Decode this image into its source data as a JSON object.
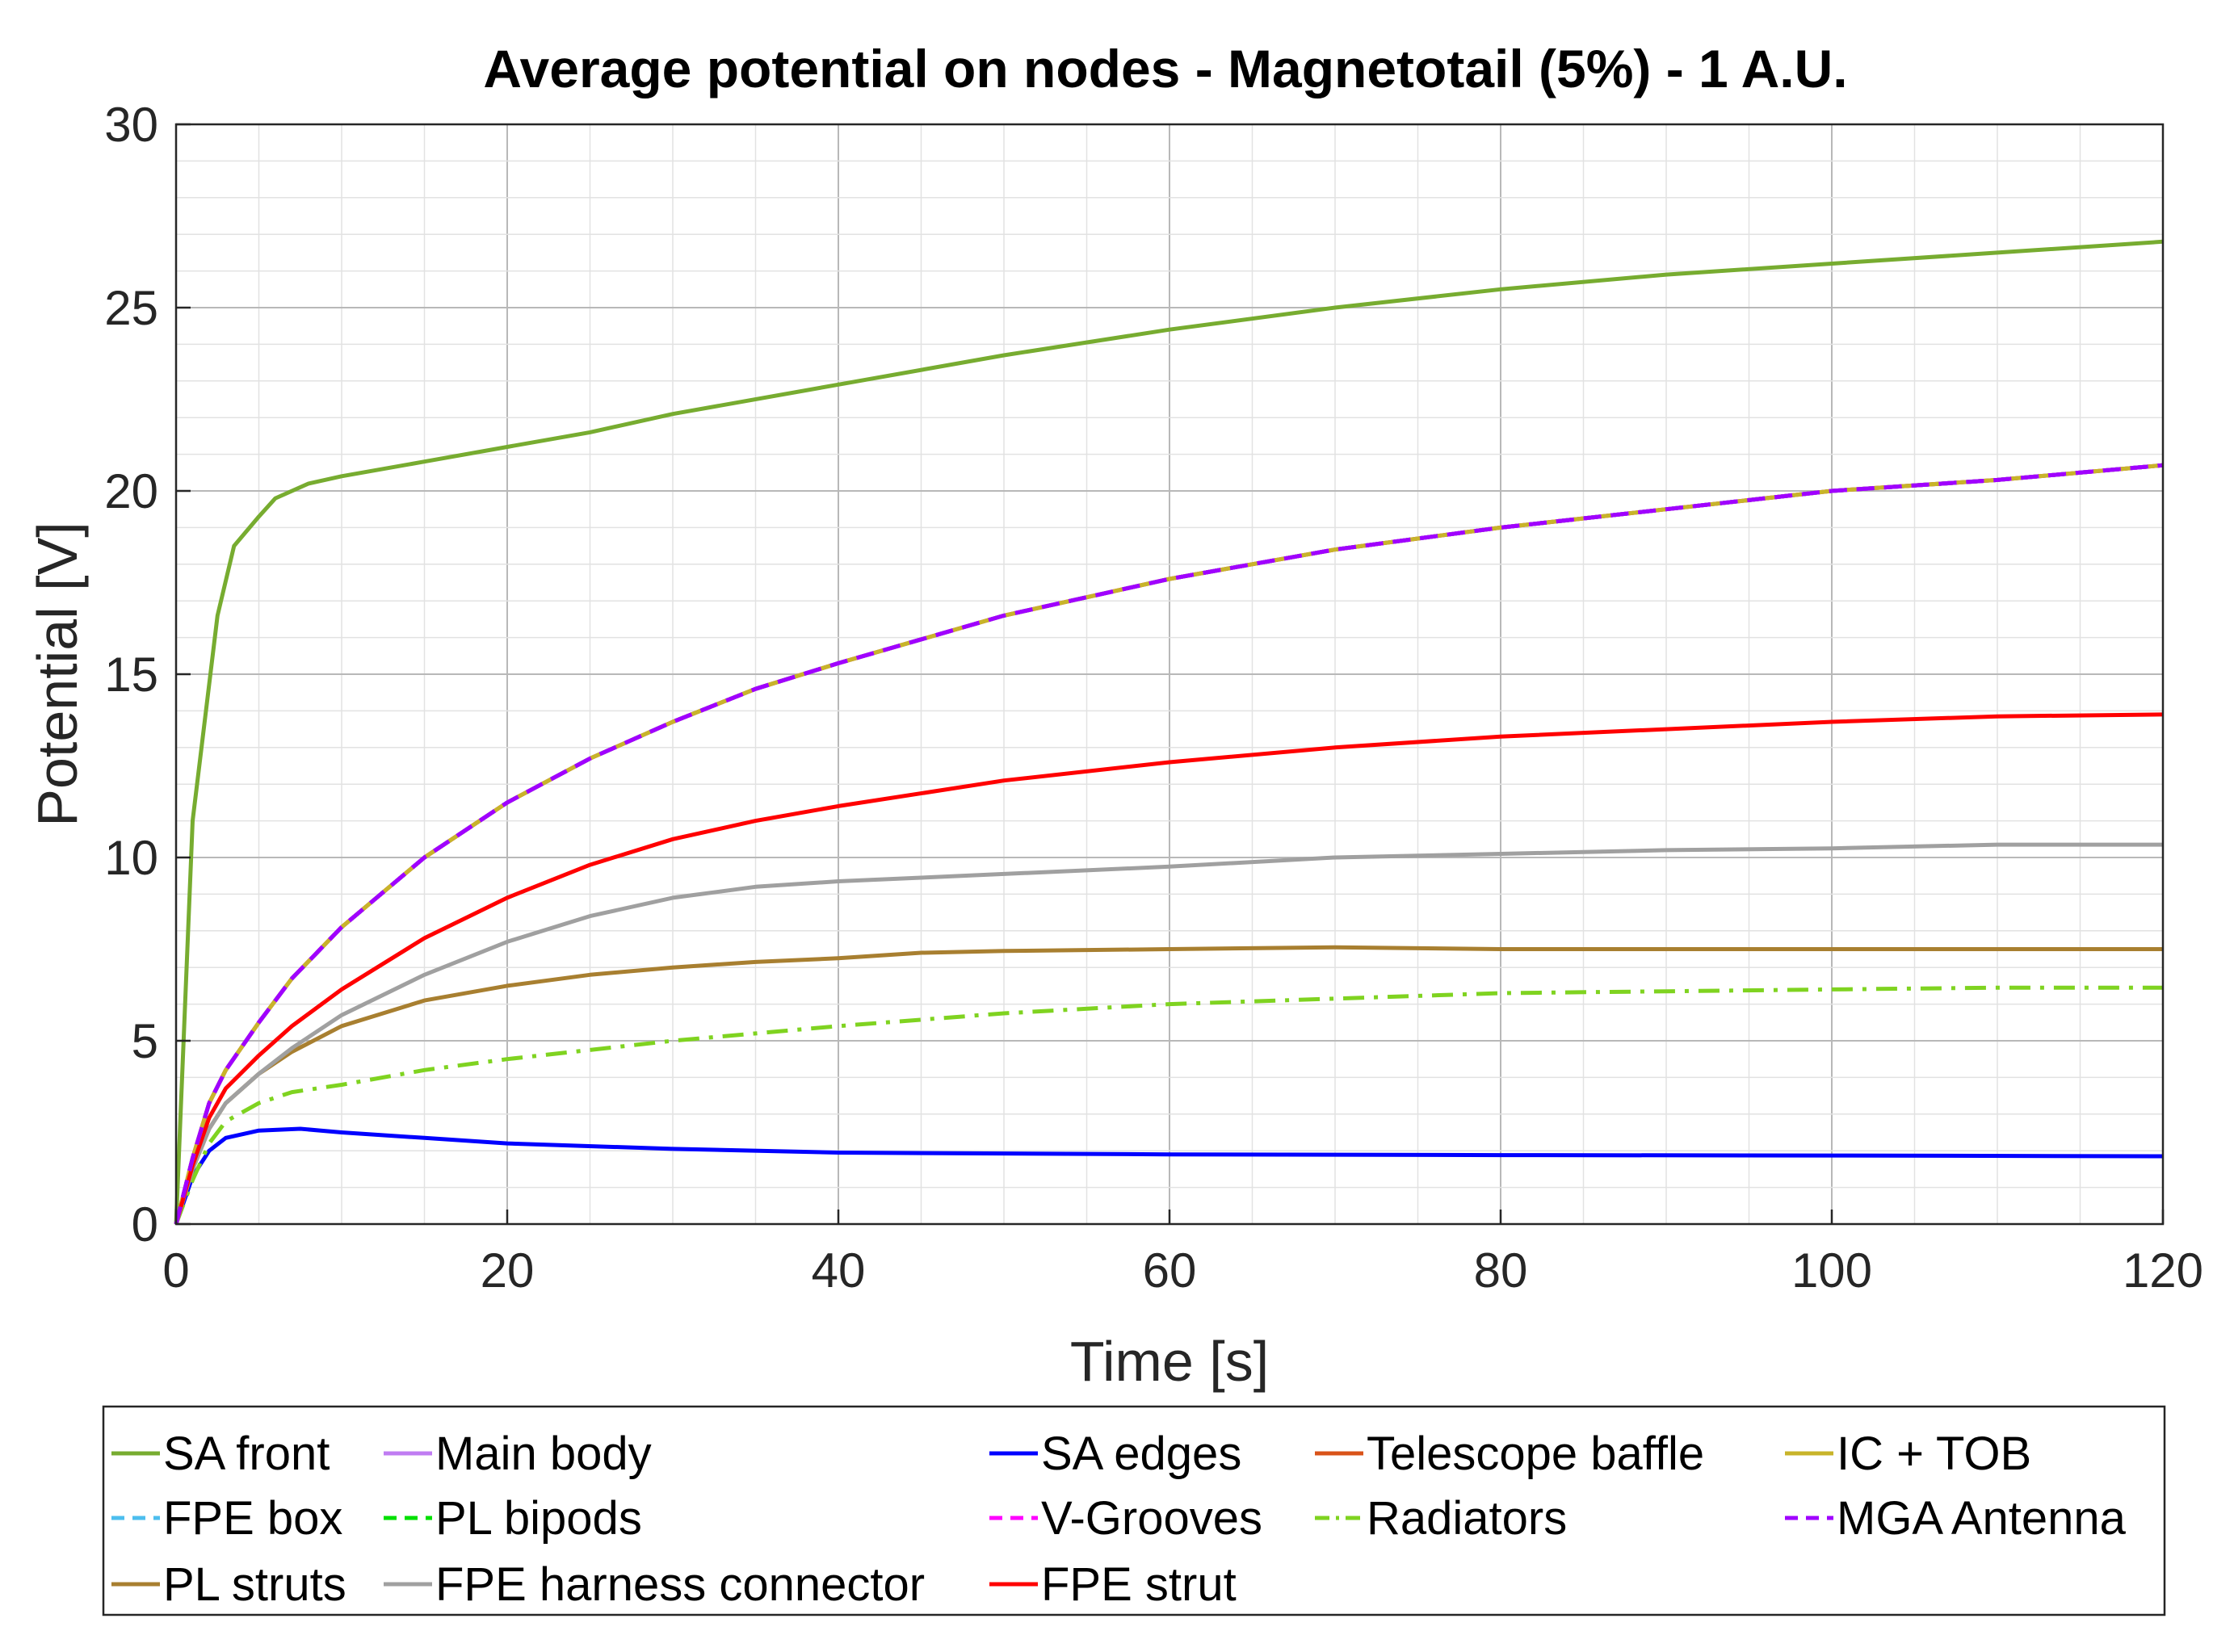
{
  "chart_data": {
    "type": "line",
    "title": "Average potential on nodes - Magnetotail (5%) - 1 A.U.",
    "xlabel": "Time [s]",
    "ylabel": "Potential [V]",
    "xlim": [
      0,
      120
    ],
    "ylim": [
      0,
      30
    ],
    "xticks": [
      0,
      20,
      40,
      60,
      80,
      100,
      120
    ],
    "yticks": [
      0,
      5,
      10,
      15,
      20,
      25,
      30
    ],
    "grid": true,
    "minor_grid": true,
    "legend_position": "bottom",
    "series": [
      {
        "name": "SA front",
        "color": "#77AC30",
        "dash": "solid",
        "x": [
          0,
          1,
          2.5,
          3.5,
          5,
          6,
          8,
          10,
          15,
          20,
          25,
          30,
          40,
          50,
          60,
          70,
          80,
          90,
          100,
          110,
          120
        ],
        "y": [
          0,
          11,
          16.6,
          18.5,
          19.3,
          19.8,
          20.2,
          20.4,
          20.8,
          21.2,
          21.6,
          22.1,
          22.9,
          23.7,
          24.4,
          25.0,
          25.5,
          25.9,
          26.2,
          26.5,
          26.8
        ]
      },
      {
        "name": "Main body",
        "color": "#C07CF2",
        "dash": "solid",
        "x": [
          0,
          1,
          2,
          3,
          5,
          7,
          10,
          15,
          20,
          25,
          30,
          35,
          40,
          50,
          60,
          70,
          80,
          90,
          100,
          110,
          120
        ],
        "y": [
          0,
          1.8,
          3.3,
          4.2,
          5.5,
          6.7,
          8.1,
          10.0,
          11.5,
          12.7,
          13.7,
          14.6,
          15.3,
          16.6,
          17.6,
          18.4,
          19.0,
          19.5,
          20.0,
          20.3,
          20.7
        ]
      },
      {
        "name": "SA edges",
        "color": "#0000FF",
        "dash": "solid",
        "x": [
          0,
          1,
          2,
          3,
          5,
          7.5,
          10,
          15,
          20,
          30,
          40,
          60,
          80,
          100,
          120
        ],
        "y": [
          0,
          1.3,
          2.0,
          2.35,
          2.55,
          2.6,
          2.5,
          2.35,
          2.2,
          2.05,
          1.95,
          1.9,
          1.88,
          1.87,
          1.85
        ]
      },
      {
        "name": "Telescope baffle",
        "color": "#D95319",
        "dash": "solid",
        "x": [
          0,
          1,
          2,
          3,
          5,
          7,
          10,
          15,
          20,
          25,
          30,
          35,
          40,
          50,
          60,
          70,
          80,
          90,
          100,
          110,
          120
        ],
        "y": [
          0,
          1.8,
          3.3,
          4.2,
          5.5,
          6.7,
          8.1,
          10.0,
          11.5,
          12.7,
          13.7,
          14.6,
          15.3,
          16.6,
          17.6,
          18.4,
          19.0,
          19.5,
          20.0,
          20.3,
          20.7
        ]
      },
      {
        "name": "IC + TOB",
        "color": "#C8B42A",
        "dash": "solid",
        "x": [
          0,
          1,
          2,
          3,
          5,
          7,
          10,
          15,
          20,
          25,
          30,
          35,
          40,
          50,
          60,
          70,
          80,
          90,
          100,
          110,
          120
        ],
        "y": [
          0,
          1.8,
          3.3,
          4.2,
          5.5,
          6.7,
          8.1,
          10.0,
          11.5,
          12.7,
          13.7,
          14.6,
          15.3,
          16.6,
          17.6,
          18.4,
          19.0,
          19.5,
          20.0,
          20.3,
          20.7
        ]
      },
      {
        "name": "FPE box",
        "color": "#4DBEEE",
        "dash": "dash",
        "x": [
          0,
          1,
          2,
          3,
          5,
          7,
          10,
          15,
          20,
          25,
          30,
          35,
          40,
          50,
          60,
          70,
          80,
          90,
          100,
          110,
          120
        ],
        "y": [
          0,
          1.8,
          3.3,
          4.2,
          5.5,
          6.7,
          8.1,
          10.0,
          11.5,
          12.7,
          13.7,
          14.6,
          15.3,
          16.6,
          17.6,
          18.4,
          19.0,
          19.5,
          20.0,
          20.3,
          20.7
        ]
      },
      {
        "name": "PL bipods",
        "color": "#00E000",
        "dash": "dash",
        "x": [
          0,
          1,
          2,
          3,
          5,
          7,
          10,
          15,
          20,
          25,
          30,
          35,
          40,
          50,
          60,
          70,
          80,
          90,
          100,
          110,
          120
        ],
        "y": [
          0,
          1.8,
          3.3,
          4.2,
          5.5,
          6.7,
          8.1,
          10.0,
          11.5,
          12.7,
          13.7,
          14.6,
          15.3,
          16.6,
          17.6,
          18.4,
          19.0,
          19.5,
          20.0,
          20.3,
          20.7
        ]
      },
      {
        "name": "V-Grooves",
        "color": "#FF00FF",
        "dash": "dash",
        "x": [
          0,
          1,
          2,
          3,
          5,
          7,
          10,
          15,
          20,
          25,
          30,
          35,
          40,
          50,
          60,
          70,
          80,
          90,
          100,
          110,
          120
        ],
        "y": [
          0,
          1.8,
          3.3,
          4.2,
          5.5,
          6.7,
          8.1,
          10.0,
          11.5,
          12.7,
          13.7,
          14.6,
          15.3,
          16.6,
          17.6,
          18.4,
          19.0,
          19.5,
          20.0,
          20.3,
          20.7
        ]
      },
      {
        "name": "Radiators",
        "color": "#7FD320",
        "dash": "dashdot",
        "x": [
          0,
          1,
          2,
          3,
          5,
          7,
          10,
          15,
          20,
          30,
          40,
          50,
          60,
          70,
          80,
          90,
          100,
          110,
          120
        ],
        "y": [
          0,
          1.2,
          2.2,
          2.8,
          3.3,
          3.6,
          3.8,
          4.2,
          4.5,
          5.0,
          5.4,
          5.75,
          6.0,
          6.15,
          6.3,
          6.35,
          6.4,
          6.45,
          6.45
        ]
      },
      {
        "name": "MGA Antenna",
        "color": "#A000FF",
        "dash": "dash",
        "x": [
          0,
          1,
          2,
          3,
          5,
          7,
          10,
          15,
          20,
          25,
          30,
          35,
          40,
          50,
          60,
          70,
          80,
          90,
          100,
          110,
          120
        ],
        "y": [
          0,
          1.8,
          3.3,
          4.2,
          5.5,
          6.7,
          8.1,
          10.0,
          11.5,
          12.7,
          13.7,
          14.6,
          15.3,
          16.6,
          17.6,
          18.4,
          19.0,
          19.5,
          20.0,
          20.3,
          20.7
        ]
      },
      {
        "name": "PL struts",
        "color": "#A87F30",
        "dash": "solid",
        "x": [
          0,
          1,
          2,
          3,
          5,
          7,
          10,
          15,
          20,
          25,
          30,
          35,
          40,
          45,
          50,
          60,
          70,
          80,
          90,
          100,
          110,
          120
        ],
        "y": [
          0,
          1.5,
          2.6,
          3.3,
          4.1,
          4.7,
          5.4,
          6.1,
          6.5,
          6.8,
          7.0,
          7.15,
          7.25,
          7.4,
          7.45,
          7.5,
          7.55,
          7.5,
          7.5,
          7.5,
          7.5,
          7.5
        ]
      },
      {
        "name": "FPE harness connector",
        "color": "#A0A0A0",
        "dash": "solid",
        "x": [
          0,
          1,
          2,
          3,
          5,
          7,
          10,
          15,
          20,
          25,
          30,
          35,
          40,
          45,
          50,
          55,
          60,
          70,
          80,
          90,
          100,
          110,
          120
        ],
        "y": [
          0,
          1.5,
          2.6,
          3.3,
          4.1,
          4.8,
          5.7,
          6.8,
          7.7,
          8.4,
          8.9,
          9.2,
          9.35,
          9.45,
          9.55,
          9.65,
          9.75,
          10.0,
          10.1,
          10.2,
          10.25,
          10.35,
          10.35
        ]
      },
      {
        "name": "FPE strut",
        "color": "#FF0000",
        "dash": "solid",
        "x": [
          0,
          1,
          2,
          3,
          5,
          7,
          10,
          15,
          20,
          25,
          30,
          35,
          40,
          50,
          60,
          70,
          80,
          90,
          100,
          110,
          120
        ],
        "y": [
          0,
          1.6,
          2.9,
          3.7,
          4.6,
          5.4,
          6.4,
          7.8,
          8.9,
          9.8,
          10.5,
          11.0,
          11.4,
          12.1,
          12.6,
          13.0,
          13.3,
          13.5,
          13.7,
          13.85,
          13.9
        ]
      }
    ],
    "legend_layout": [
      [
        "SA front",
        "Main body",
        "SA edges",
        "Telescope baffle",
        "IC + TOB"
      ],
      [
        "FPE box",
        "PL bipods",
        "V-Grooves",
        "Radiators",
        "MGA Antenna"
      ],
      [
        "PL struts",
        "FPE harness connector",
        "FPE strut"
      ]
    ]
  }
}
